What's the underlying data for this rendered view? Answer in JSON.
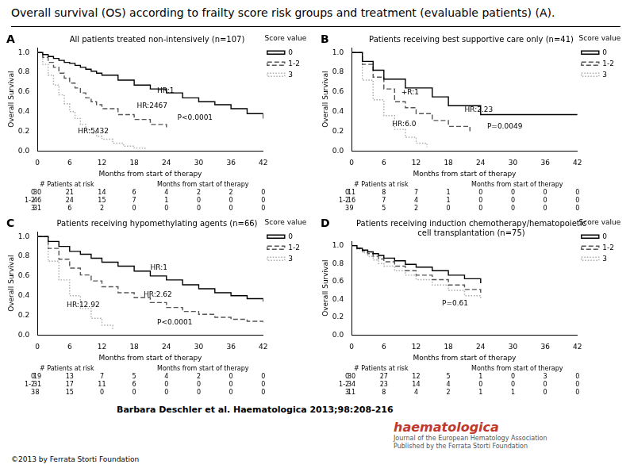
{
  "title": "Overall survival (OS) according to frailty score risk groups and treatment (evaluable patients) (A).",
  "citation": "Barbara Deschler et al. Haematologica 2013;98:208-216",
  "copyright": "©2013 by Ferrata Storti Foundation",
  "logo": [
    "haematologica",
    "Journal of the European Hematology Association",
    "Published by the Ferrata Storti Foundation"
  ],
  "logo_color": "#c0392b",
  "chart_data": [
    {
      "type": "step",
      "label": "A",
      "title": "All patients treated non-intensively (n=107)",
      "xlabel": "Months from start of therapy",
      "ylabel": "Overall Survival",
      "xlim": [
        0,
        42
      ],
      "xticks": [
        0,
        6,
        12,
        18,
        24,
        30,
        36,
        42
      ],
      "ylim": [
        0,
        1.05
      ],
      "yticks": [
        {
          "value": 0,
          "label": "0.0"
        },
        0.2,
        0.4,
        0.6,
        0.8,
        {
          "value": 1,
          "label": "1.0"
        }
      ],
      "grid": false,
      "legend": "upper right",
      "legend_title": "Score value",
      "series": [
        {
          "name": "0",
          "color": "#000000",
          "line_style": "solid",
          "x": [
            0,
            1,
            2,
            3,
            4,
            5,
            6,
            7,
            8,
            9,
            10,
            11,
            12,
            15,
            18,
            21,
            24,
            27,
            30,
            33,
            36,
            39,
            42
          ],
          "values": [
            1.0,
            0.98,
            0.96,
            0.94,
            0.92,
            0.9,
            0.89,
            0.87,
            0.85,
            0.83,
            0.81,
            0.79,
            0.77,
            0.72,
            0.67,
            0.63,
            0.59,
            0.54,
            0.5,
            0.47,
            0.43,
            0.38,
            0.33
          ]
        },
        {
          "name": "1-2",
          "color": "#555555",
          "line_style": "dashed",
          "x": [
            0,
            1,
            2,
            3,
            4,
            5,
            6,
            7,
            8,
            9,
            10,
            11,
            12,
            15,
            18,
            21,
            24
          ],
          "values": [
            1.0,
            0.95,
            0.9,
            0.85,
            0.79,
            0.74,
            0.69,
            0.64,
            0.59,
            0.54,
            0.5,
            0.47,
            0.43,
            0.37,
            0.32,
            0.27,
            0.24
          ]
        },
        {
          "name": "3",
          "color": "#aaaaaa",
          "line_style": "dotted",
          "x": [
            0,
            1,
            2,
            3,
            4,
            5,
            6,
            7,
            8,
            9,
            10,
            11,
            12,
            14,
            16,
            18,
            20
          ],
          "values": [
            1.0,
            0.88,
            0.77,
            0.67,
            0.57,
            0.48,
            0.4,
            0.33,
            0.27,
            0.22,
            0.18,
            0.15,
            0.12,
            0.08,
            0.05,
            0.03,
            0.02
          ]
        }
      ],
      "annotations": [
        "HR:1",
        "HR:2467",
        "HR:5432",
        "P<0.0001"
      ],
      "risk_table": {
        "header": [
          "# Patients at risk",
          "Months from start of therapy"
        ],
        "rows": [
          "0",
          "1-2",
          "3"
        ],
        "values": [
          [
            30,
            21,
            14,
            6,
            4,
            2,
            2,
            0
          ],
          [
            46,
            24,
            15,
            7,
            1,
            0,
            0,
            0
          ],
          [
            31,
            6,
            2,
            0,
            0,
            0,
            0,
            0
          ]
        ]
      }
    },
    {
      "type": "step",
      "label": "B",
      "title": "Patients receiving best supportive care only (n=41)",
      "xlabel": "Months from start of therapy",
      "ylabel": "Overall Survival",
      "xlim": [
        0,
        42
      ],
      "xticks": [
        0,
        6,
        12,
        18,
        24,
        30,
        36,
        42
      ],
      "ylim": [
        0,
        1.05
      ],
      "yticks": [
        {
          "value": 0,
          "label": "0.0"
        },
        0.2,
        0.4,
        0.6,
        0.8,
        {
          "value": 1,
          "label": "1.0"
        }
      ],
      "grid": false,
      "legend": "upper right",
      "legend_title": "Score value",
      "series": [
        {
          "name": "0",
          "color": "#000000",
          "line_style": "solid",
          "x": [
            0,
            2,
            4,
            6,
            8,
            10,
            12,
            15,
            18,
            24,
            30,
            36,
            42
          ],
          "values": [
            1.0,
            0.91,
            0.82,
            0.73,
            0.73,
            0.64,
            0.64,
            0.55,
            0.46,
            0.37,
            0.37,
            0.37,
            0.37
          ]
        },
        {
          "name": "1-2",
          "color": "#555555",
          "line_style": "dashed",
          "x": [
            0,
            2,
            4,
            6,
            8,
            10,
            12,
            15,
            18,
            22
          ],
          "values": [
            1.0,
            0.88,
            0.75,
            0.63,
            0.5,
            0.44,
            0.38,
            0.31,
            0.25,
            0.2
          ]
        },
        {
          "name": "3",
          "color": "#aaaaaa",
          "line_style": "dotted",
          "x": [
            0,
            2,
            4,
            6,
            8,
            10,
            12,
            14
          ],
          "values": [
            1.0,
            0.72,
            0.52,
            0.36,
            0.22,
            0.14,
            0.08,
            0.04
          ]
        }
      ],
      "annotations": [
        "+R:1",
        "HR:2.23",
        "HR:6.0",
        "P=0.0049"
      ],
      "risk_table": {
        "header": [
          "# Patients at risk",
          "Months from start of therapy"
        ],
        "rows": [
          "0",
          "1-2",
          "3"
        ],
        "values": [
          [
            11,
            8,
            7,
            1,
            0,
            0,
            0,
            0
          ],
          [
            16,
            7,
            4,
            1,
            0,
            0,
            0,
            0
          ],
          [
            9,
            5,
            2,
            0,
            0,
            0,
            0,
            0
          ]
        ]
      }
    },
    {
      "type": "step",
      "label": "C",
      "title": "Patients receiving hypomethylating agents (n=66)",
      "xlabel": "Months from start of therapy",
      "ylabel": "Overall Survival",
      "xlim": [
        0,
        42
      ],
      "xticks": [
        0,
        6,
        12,
        18,
        24,
        30,
        36,
        42
      ],
      "ylim": [
        0,
        1.05
      ],
      "yticks": [
        {
          "value": 0,
          "label": "0.0"
        },
        0.2,
        0.4,
        0.6,
        0.8,
        {
          "value": 1,
          "label": "1.0"
        }
      ],
      "grid": false,
      "legend": "upper right",
      "legend_title": "Score value",
      "series": [
        {
          "name": "0",
          "color": "#000000",
          "line_style": "solid",
          "x": [
            0,
            2,
            4,
            6,
            8,
            10,
            12,
            15,
            18,
            21,
            24,
            27,
            30,
            33,
            36,
            39,
            42
          ],
          "values": [
            1.0,
            0.95,
            0.9,
            0.85,
            0.82,
            0.78,
            0.74,
            0.7,
            0.65,
            0.6,
            0.56,
            0.51,
            0.47,
            0.43,
            0.4,
            0.37,
            0.34
          ]
        },
        {
          "name": "1-2",
          "color": "#555555",
          "line_style": "dashed",
          "x": [
            0,
            2,
            4,
            6,
            8,
            10,
            12,
            15,
            18,
            21,
            24,
            27,
            30,
            33,
            36,
            39,
            42
          ],
          "values": [
            1.0,
            0.88,
            0.77,
            0.68,
            0.61,
            0.55,
            0.49,
            0.43,
            0.38,
            0.33,
            0.28,
            0.24,
            0.21,
            0.18,
            0.16,
            0.14,
            0.12
          ]
        },
        {
          "name": "3",
          "color": "#aaaaaa",
          "line_style": "dotted",
          "x": [
            0,
            2,
            4,
            6,
            8,
            10,
            12,
            14
          ],
          "values": [
            1.0,
            0.75,
            0.56,
            0.4,
            0.27,
            0.17,
            0.1,
            0.05
          ]
        }
      ],
      "annotations": [
        "HR:1",
        "HR:2.62",
        "HR:12.92",
        "P<0.0001"
      ],
      "risk_table": {
        "header": [
          "# Patients at risk",
          "Months from start of therapy"
        ],
        "rows": [
          "0",
          "1-2",
          "3"
        ],
        "values": [
          [
            19,
            13,
            7,
            5,
            4,
            2,
            0,
            0
          ],
          [
            31,
            17,
            11,
            6,
            0,
            0,
            0,
            0
          ],
          [
            8,
            15,
            0,
            0,
            0,
            0,
            0,
            0
          ]
        ]
      }
    },
    {
      "type": "step",
      "label": "D",
      "title": "Patients receiving induction chemotherapy/hematopoietic\ncell transplantation (n=75)",
      "xlabel": "Months from start of therapy",
      "ylabel": "Overall Survival",
      "xlim": [
        0,
        42
      ],
      "xticks": [
        0,
        6,
        12,
        18,
        24,
        30,
        36,
        42
      ],
      "ylim": [
        0,
        1.05
      ],
      "yticks": [
        {
          "value": 0,
          "label": "0.0"
        },
        0.2,
        0.4,
        0.6,
        0.8,
        {
          "value": 1,
          "label": "1.0"
        }
      ],
      "grid": false,
      "legend": "upper right",
      "legend_title": "Score value",
      "series": [
        {
          "name": "0",
          "color": "#000000",
          "line_style": "solid",
          "x": [
            0,
            1,
            2,
            3,
            4,
            5,
            6,
            8,
            10,
            12,
            15,
            18,
            21,
            24
          ],
          "values": [
            1.0,
            0.97,
            0.95,
            0.93,
            0.91,
            0.89,
            0.86,
            0.83,
            0.79,
            0.76,
            0.72,
            0.67,
            0.63,
            0.58
          ]
        },
        {
          "name": "1-2",
          "color": "#555555",
          "line_style": "dashed",
          "x": [
            0,
            1,
            2,
            3,
            4,
            5,
            6,
            8,
            10,
            12,
            15,
            18,
            21,
            24
          ],
          "values": [
            1.0,
            0.97,
            0.94,
            0.91,
            0.88,
            0.85,
            0.82,
            0.77,
            0.72,
            0.67,
            0.62,
            0.56,
            0.51,
            0.47
          ]
        },
        {
          "name": "3",
          "color": "#aaaaaa",
          "line_style": "dotted",
          "x": [
            0,
            1,
            2,
            3,
            4,
            5,
            6,
            8,
            10,
            12,
            15,
            18,
            21,
            24
          ],
          "values": [
            1.0,
            0.96,
            0.92,
            0.88,
            0.84,
            0.8,
            0.77,
            0.72,
            0.67,
            0.62,
            0.56,
            0.5,
            0.44,
            0.4
          ]
        }
      ],
      "annotations": [
        "P=0.61"
      ],
      "risk_table": {
        "header": [
          "# Patients at risk",
          "Months from start of therapy"
        ],
        "rows": [
          "0",
          "1-2",
          "3"
        ],
        "values": [
          [
            30,
            27,
            12,
            5,
            1,
            0,
            3,
            0
          ],
          [
            34,
            23,
            14,
            4,
            0,
            0,
            0,
            0
          ],
          [
            11,
            8,
            4,
            2,
            1,
            1,
            0,
            0
          ]
        ]
      }
    }
  ]
}
